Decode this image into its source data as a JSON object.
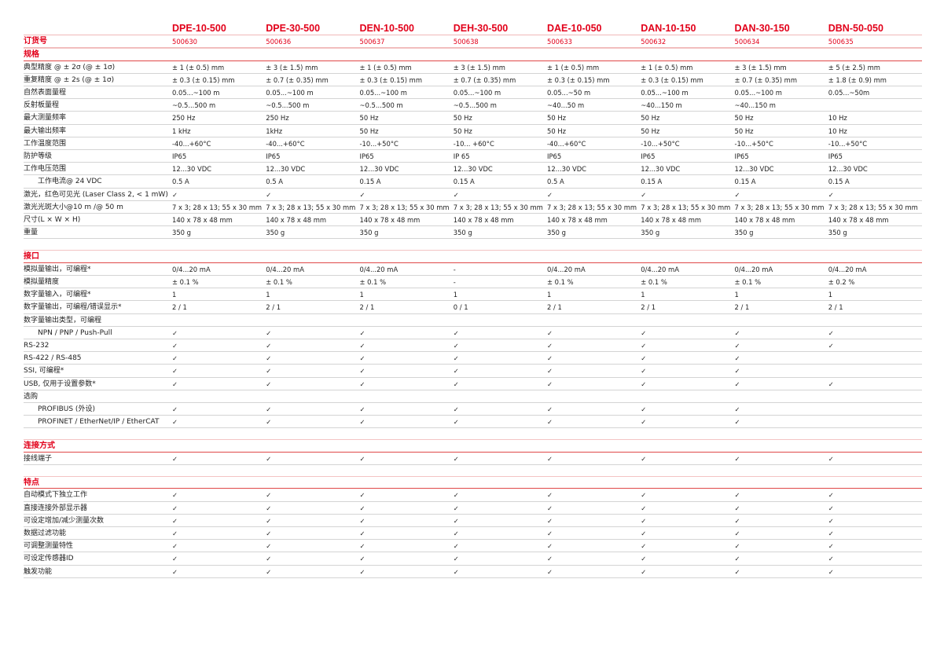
{
  "columns": [
    "DPE-10-500",
    "DPE-30-500",
    "DEN-10-500",
    "DEH-30-500",
    "DAE-10-050",
    "DAN-10-150",
    "DAN-30-150",
    "DBN-50-050"
  ],
  "order": {
    "label": "订货号",
    "values": [
      "500630",
      "500636",
      "500637",
      "500638",
      "500633",
      "500632",
      "500634",
      "500635"
    ]
  },
  "accent_color": "#e2001a",
  "sections": [
    {
      "title": "规格",
      "rows": [
        {
          "label": "典型精度 @ ± 2σ (@ ± 1σ)",
          "values": [
            "± 1 (± 0.5) mm",
            "± 3 (± 1.5) mm",
            "± 1 (± 0.5) mm",
            "± 3 (± 1.5) mm",
            "± 1 (± 0.5) mm",
            "± 1 (± 0.5) mm",
            "± 3 (± 1.5) mm",
            "± 5 (± 2.5) mm"
          ]
        },
        {
          "label": "重复精度 @ ± 2s (@ ± 1σ)",
          "values": [
            "± 0.3 (± 0.15) mm",
            "± 0.7 (± 0.35) mm",
            "± 0.3 (± 0.15) mm",
            "± 0.7 (± 0.35) mm",
            "± 0.3 (± 0.15) mm",
            "± 0.3 (± 0.15) mm",
            "± 0.7 (± 0.35) mm",
            "± 1.8 (± 0.9) mm"
          ]
        },
        {
          "label": "自然表面量程",
          "values": [
            "0.05...~100 m",
            "0.05...~100 m",
            "0.05...~100 m",
            "0.05...~100 m",
            "0.05...~50 m",
            "0.05...~100 m",
            "0.05...~100 m",
            "0.05...~50m"
          ]
        },
        {
          "label": "反射板量程",
          "values": [
            " ~0.5...500 m",
            " ~0.5...500 m",
            " ~0.5...500 m",
            " ~0.5...500 m",
            "~40...50 m",
            "~40...150 m",
            "~40...150 m",
            ""
          ]
        },
        {
          "label": "最大测量频率",
          "values": [
            "250 Hz",
            "250 Hz",
            "50 Hz",
            "50 Hz",
            "50 Hz",
            "50 Hz",
            "50 Hz",
            "10 Hz"
          ]
        },
        {
          "label": "最大输出频率",
          "values": [
            "1 kHz",
            "1kHz",
            "50 Hz",
            "50 Hz",
            "50 Hz",
            "50 Hz",
            "50 Hz",
            "10 Hz"
          ]
        },
        {
          "label": "工作温度范围",
          "values": [
            "-40...+60°C",
            "-40...+60°C",
            "-10...+50°C",
            "-10... +60°C",
            "-40...+60°C",
            "-10...+50°C",
            "-10...+50°C",
            "-10...+50°C"
          ]
        },
        {
          "label": "防护等级",
          "values": [
            "IP65",
            "IP65",
            "IP65",
            "IP 65",
            "IP65",
            "IP65",
            "IP65",
            "IP65"
          ]
        },
        {
          "label": "工作电压范围",
          "values": [
            "12...30 VDC",
            "12...30 VDC",
            "12...30 VDC",
            "12...30 VDC",
            "12...30 VDC",
            "12...30 VDC",
            "12...30 VDC",
            "12...30 VDC"
          ]
        },
        {
          "label": "工作电流@ 24 VDC",
          "indent": true,
          "values": [
            "0.5 A",
            "0.5 A",
            "0.15 A",
            "0.15 A",
            "0.5 A",
            "0.15 A",
            "0.15 A",
            "0.15 A"
          ]
        },
        {
          "label": "激光，红色可见光 (Laser Class 2, < 1 mW)",
          "values": [
            "✓",
            "✓",
            "✓",
            "✓",
            "✓",
            "✓",
            "✓",
            "✓"
          ]
        },
        {
          "label": "激光光斑大小@10 m /@ 50 m",
          "values": [
            "7 x 3; 28 x 13; 55 x 30 mm",
            "7 x 3; 28 x 13; 55 x 30 mm",
            "7 x 3; 28 x 13; 55 x 30 mm",
            "7 x 3; 28 x 13; 55 x 30 mm",
            "7 x 3; 28 x 13; 55 x 30 mm",
            "7 x 3; 28 x 13; 55 x 30 mm",
            "7 x 3; 28 x 13; 55 x 30 mm",
            "7 x 3; 28 x 13; 55 x 30 mm"
          ]
        },
        {
          "label": "尺寸(L × W × H)",
          "values": [
            "140 x 78 x 48 mm",
            "140 x 78 x 48 mm",
            "140 x 78 x 48 mm",
            "140 x 78 x 48 mm",
            "140 x 78 x 48 mm",
            "140 x 78 x 48 mm",
            "140 x 78 x 48 mm",
            "140 x 78 x 48 mm"
          ]
        },
        {
          "label": "重量",
          "values": [
            "350 g",
            "350 g",
            "350 g",
            "350 g",
            "350 g",
            "350 g",
            "350 g",
            "350 g"
          ]
        }
      ]
    },
    {
      "title": "接口",
      "rows": [
        {
          "label": "模拟量输出，可编程*",
          "values": [
            "0/4...20 mA",
            "0/4...20 mA",
            "0/4...20 mA",
            "-",
            "0/4...20 mA",
            "0/4...20 mA",
            "0/4...20 mA",
            "0/4...20 mA"
          ]
        },
        {
          "label": "模拟量精度",
          "values": [
            "± 0.1 %",
            "± 0.1 %",
            "± 0.1 %",
            "-",
            "± 0.1 %",
            "± 0.1 %",
            "± 0.1 %",
            "± 0.2 %"
          ]
        },
        {
          "label": "数字量输入，可编程*",
          "values": [
            "1",
            "1",
            "1",
            "1",
            "1",
            "1",
            "1",
            "1"
          ]
        },
        {
          "label": "数字量输出，可编程/错误显示*",
          "values": [
            "2 / 1",
            "2 / 1",
            "2 / 1",
            "0 / 1",
            "2 / 1",
            "2 / 1",
            "2 / 1",
            "2 / 1"
          ]
        },
        {
          "label": "数字量输出类型，可编程",
          "values": [
            "",
            "",
            "",
            "",
            "",
            "",
            "",
            ""
          ]
        },
        {
          "label": "NPN / PNP / Push-Pull",
          "indent": true,
          "values": [
            "✓",
            "✓",
            "✓",
            "✓",
            "✓",
            "✓",
            "✓",
            "✓"
          ]
        },
        {
          "label": "RS-232",
          "values": [
            "✓",
            "✓",
            "✓",
            "✓",
            "✓",
            "✓",
            "✓",
            "✓"
          ]
        },
        {
          "label": "RS-422 / RS-485",
          "values": [
            "✓",
            "✓",
            "✓",
            "✓",
            "✓",
            "✓",
            "✓",
            ""
          ]
        },
        {
          "label": "SSI, 可编程*",
          "values": [
            "✓",
            "✓",
            "✓",
            "✓",
            "✓",
            "✓",
            "✓",
            ""
          ]
        },
        {
          "label": "USB, 仅用于设置参数*",
          "values": [
            "✓",
            "✓",
            "✓",
            "✓",
            "✓",
            "✓",
            "✓",
            "✓"
          ]
        },
        {
          "label": "选购",
          "values": [
            "",
            "",
            "",
            "",
            "",
            "",
            "",
            ""
          ]
        },
        {
          "label": "PROFIBUS (外设)",
          "indent": true,
          "values": [
            "✓",
            "✓",
            "✓",
            "✓",
            "✓",
            "✓",
            "✓",
            ""
          ]
        },
        {
          "label": "PROFINET / EtherNet/IP / EtherCAT",
          "indent": true,
          "values": [
            "✓",
            "✓",
            "✓",
            "✓",
            "✓",
            "✓",
            "✓",
            ""
          ]
        }
      ]
    },
    {
      "title": "连接方式",
      "rows": [
        {
          "label": "接线端子",
          "values": [
            "✓",
            "✓",
            "✓",
            "✓",
            "✓",
            "✓",
            "✓",
            "✓"
          ]
        }
      ]
    },
    {
      "title": "特点",
      "rows": [
        {
          "label": "自动模式下独立工作",
          "values": [
            "✓",
            "✓",
            "✓",
            "✓",
            "✓",
            "✓",
            "✓",
            "✓"
          ]
        },
        {
          "label": "直接连接外部显示器",
          "values": [
            "✓",
            "✓",
            "✓",
            "✓",
            "✓",
            "✓",
            "✓",
            "✓"
          ]
        },
        {
          "label": "可设定增加/减少测量次数",
          "values": [
            "✓",
            "✓",
            "✓",
            "✓",
            "✓",
            "✓",
            "✓",
            "✓"
          ]
        },
        {
          "label": "数据过滤功能",
          "values": [
            "✓",
            "✓",
            "✓",
            "✓",
            "✓",
            "✓",
            "✓",
            "✓"
          ]
        },
        {
          "label": "可调整测量特性",
          "values": [
            "✓",
            "✓",
            "✓",
            "✓",
            "✓",
            "✓",
            "✓",
            "✓"
          ]
        },
        {
          "label": "可设定传感器ID",
          "values": [
            "✓",
            "✓",
            "✓",
            "✓",
            "✓",
            "✓",
            "✓",
            "✓"
          ]
        },
        {
          "label": "触发功能",
          "values": [
            "✓",
            "✓",
            "✓",
            "✓",
            "✓",
            "✓",
            "✓",
            "✓"
          ]
        }
      ]
    }
  ]
}
